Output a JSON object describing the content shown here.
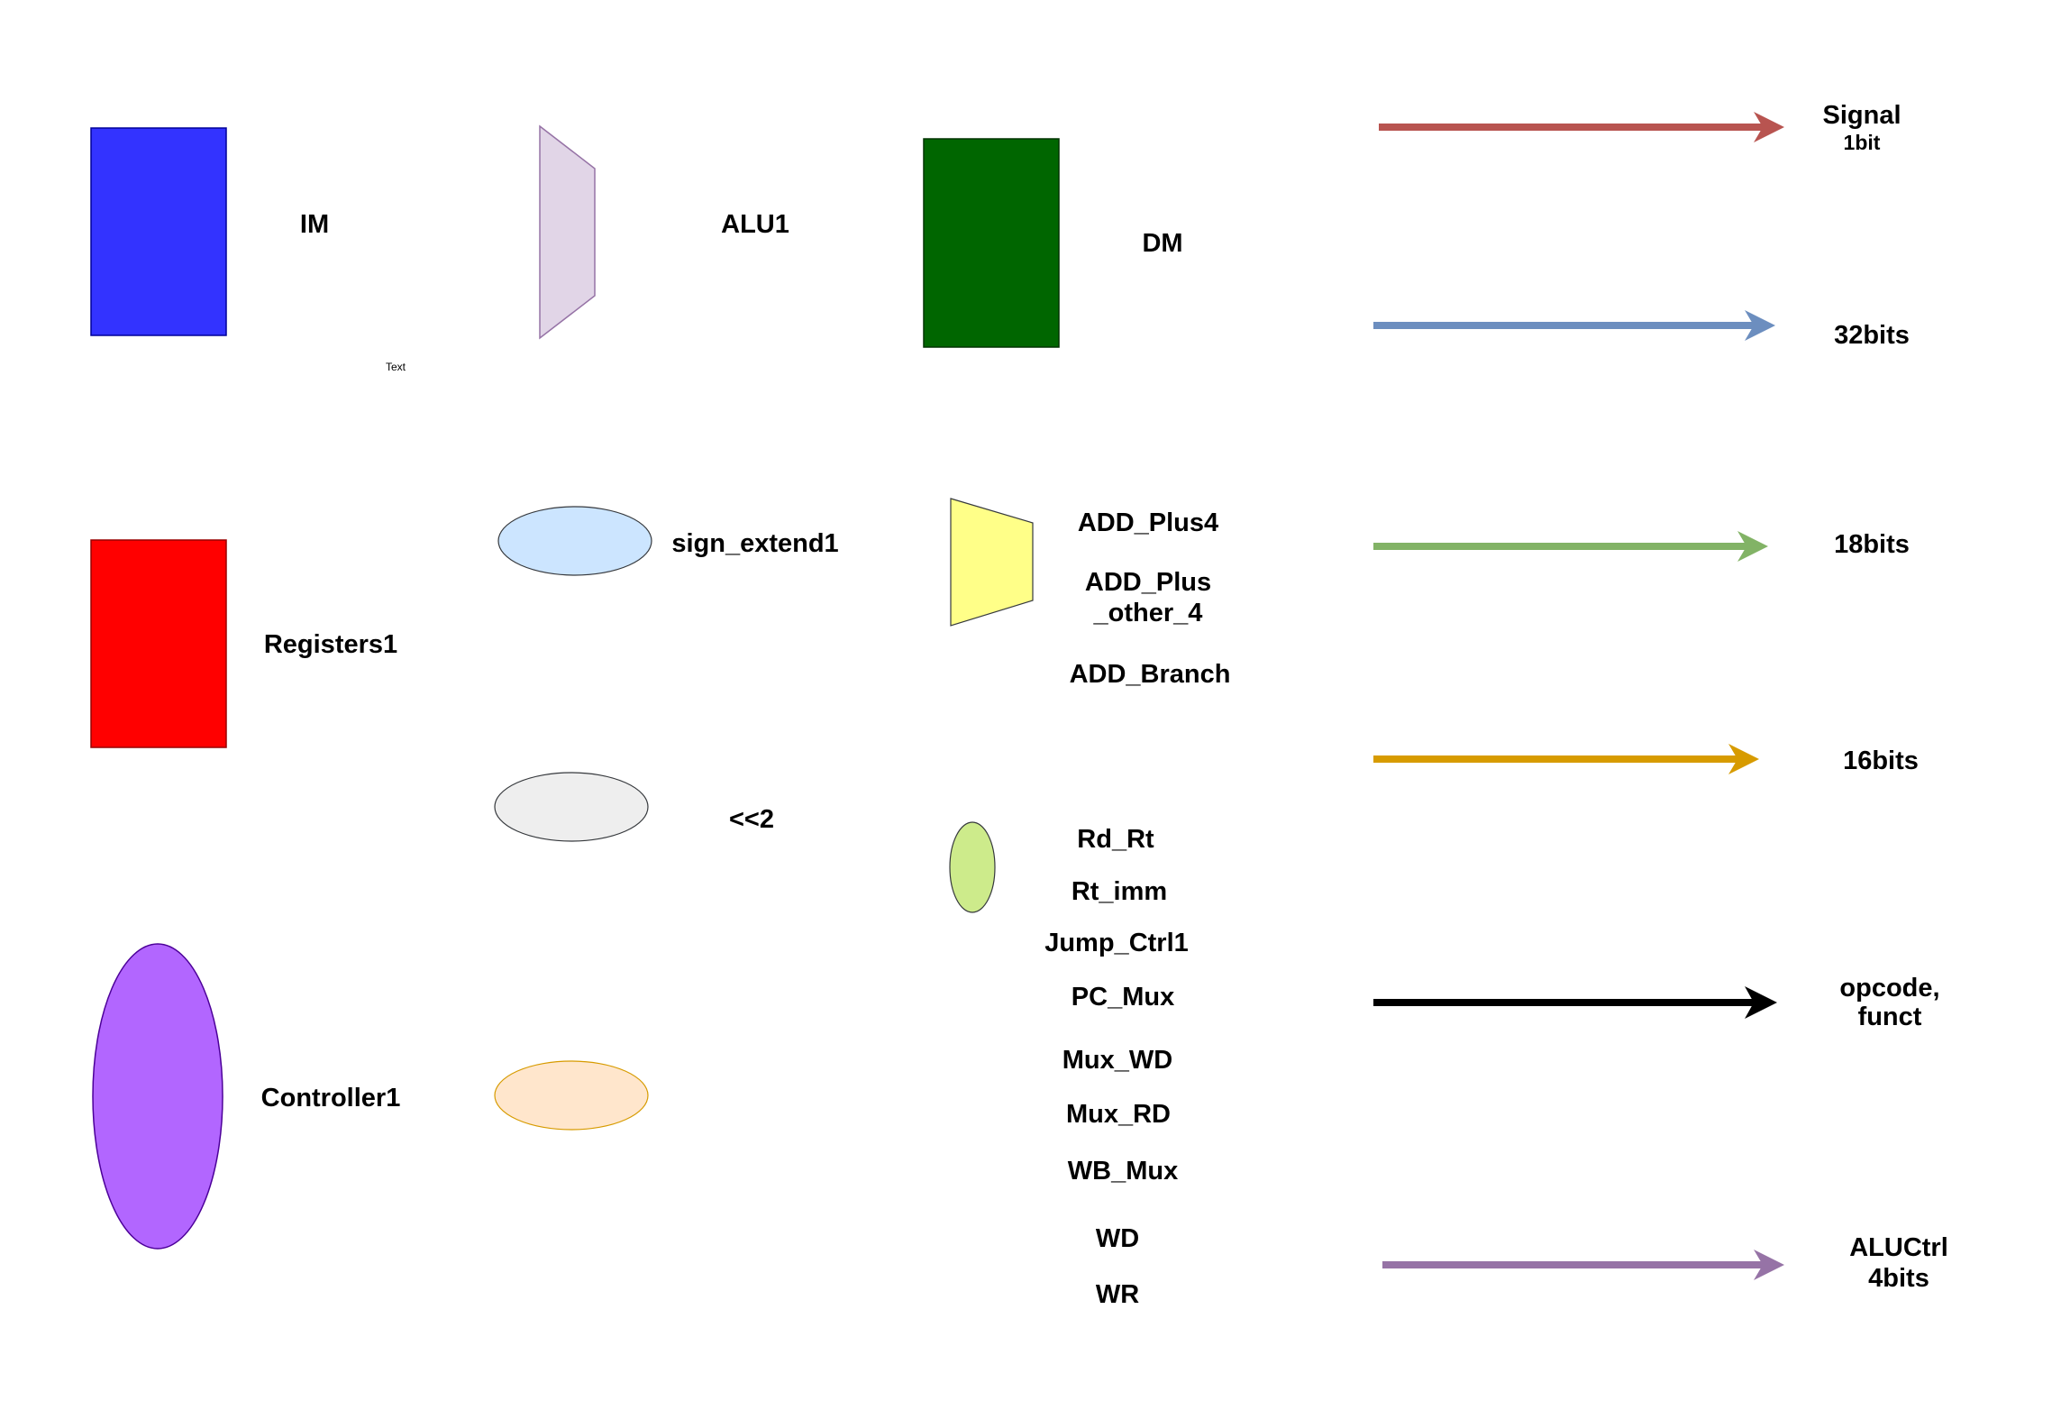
{
  "components": {
    "im": {
      "label": "IM",
      "color": "#3333FF"
    },
    "alu": {
      "label": "ALU1",
      "color": "#E1D5E7"
    },
    "dm": {
      "label": "DM",
      "color": "#006600"
    },
    "registers": {
      "label": "Registers1",
      "color": "#FF0000"
    },
    "sign_extend": {
      "label": "sign_extend1",
      "color": "#CCE5FF"
    },
    "shift": {
      "label": "<<2",
      "color": "#EEEEEE"
    },
    "controller": {
      "label": "Controller1",
      "color": "#B266FF"
    },
    "orange_ellipse": {
      "color": "#FFE6CC"
    },
    "adder": {
      "color": "#FFFF88",
      "labels": [
        "ADD_Plus4",
        "ADD_Plus",
        "_other_4",
        "ADD_Branch"
      ]
    },
    "mux": {
      "color": "#CDEB8B",
      "labels": [
        "Rd_Rt",
        "Rt_imm",
        "Jump_Ctrl1",
        "PC_Mux",
        "Mux_WD",
        "Mux_RD",
        "WB_Mux",
        "WD",
        "WR"
      ]
    },
    "text_placeholder": "Text"
  },
  "legend": [
    {
      "color": "#B85450",
      "lines": [
        "Signal",
        "1bit"
      ]
    },
    {
      "color": "#6C8EBF",
      "lines": [
        "32bits"
      ]
    },
    {
      "color": "#82B366",
      "lines": [
        "18bits"
      ]
    },
    {
      "color": "#D79B00",
      "lines": [
        "16bits"
      ]
    },
    {
      "color": "#000000",
      "lines": [
        "opcode,",
        "funct"
      ]
    },
    {
      "color": "#9673A6",
      "lines": [
        "ALUCtrl",
        "4bits"
      ]
    }
  ]
}
